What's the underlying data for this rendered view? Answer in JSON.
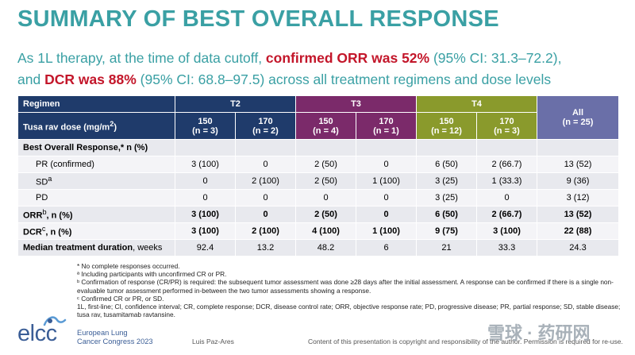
{
  "title": "SUMMARY OF BEST OVERALL RESPONSE",
  "subtitle": {
    "l1a": "As 1L therapy, at the time of data cutoff, ",
    "l1b": "confirmed ORR was 52%",
    "l1c": " (95% CI: 31.3–72.2),",
    "l2a": "and ",
    "l2b": "DCR was 88%",
    "l2c": " (95% CI:  68.8–97.5) across all treatment regimens and dose levels"
  },
  "table": {
    "regimen_label": "Regimen",
    "dose_label": "Tusa rav dose (mg/m",
    "dose_sup": "2",
    "dose_close": ")",
    "groups": [
      "T2",
      "T3",
      "T4"
    ],
    "cols": [
      {
        "dose": "150",
        "n": "(n = 3)"
      },
      {
        "dose": "170",
        "n": "(n = 2)"
      },
      {
        "dose": "150",
        "n": "(n = 4)"
      },
      {
        "dose": "170",
        "n": "(n = 1)"
      },
      {
        "dose": "150",
        "n": "(n = 12)"
      },
      {
        "dose": "170",
        "n": "(n = 3)"
      },
      {
        "dose": "All",
        "n": "(n = 25)"
      }
    ],
    "section": "Best Overall Response,* n (%)",
    "rows": {
      "pr": {
        "label": "PR (confirmed)",
        "values": [
          "3 (100)",
          "0",
          "2 (50)",
          "0",
          "6 (50)",
          "2 (66.7)",
          "13 (52)"
        ]
      },
      "sd": {
        "label": "SD",
        "sup": "a",
        "values": [
          "0",
          "2 (100)",
          "2 (50)",
          "1 (100)",
          "3 (25)",
          "1 (33.3)",
          "9 (36)"
        ]
      },
      "pd": {
        "label": "PD",
        "values": [
          "0",
          "0",
          "0",
          "0",
          "3 (25)",
          "0",
          "3 (12)"
        ]
      },
      "orr": {
        "label": "ORR",
        "sup": "b",
        "rest": ", n (%)",
        "values": [
          "3 (100)",
          "0",
          "2 (50)",
          "0",
          "6 (50)",
          "2 (66.7)",
          "13 (52)"
        ]
      },
      "dcr": {
        "label": "DCR",
        "sup": "c",
        "rest": ", n (%)",
        "values": [
          "3 (100)",
          "2 (100)",
          "4 (100)",
          "1 (100)",
          "9 (75)",
          "3 (100)",
          "22 (88)"
        ]
      },
      "mtd": {
        "label": "Median treatment duration",
        "rest": ", weeks",
        "values": [
          "92.4",
          "13.2",
          "48.2",
          "6",
          "21",
          "33.3",
          "24.3"
        ]
      }
    }
  },
  "footnotes": [
    "* No complete responses occurred.",
    "ª Including participants with unconfirmed CR or PR.",
    "ᵇ Confirmation of response (CR/PR) is required: the subsequent tumor assessment was done ≥28 days after the initial assessment. A response can be confirmed if there is a single non-evaluable tumor assessment performed in-between the two tumor assessments showing a response.",
    "ᶜ Confirmed CR or PR, or SD.",
    "1L, first-line; CI, confidence interval; CR, complete response; DCR, disease control rate; ORR, objective response rate; PD, progressive disease; PR, partial response; SD, stable disease; tusa rav, tusamitamab ravtansine."
  ],
  "footer": {
    "logo": "elcc",
    "conf_line1": "European Lung",
    "conf_line2": "Cancer Congress 2023",
    "presenter": "Luis Paz-Ares",
    "copyright": "Content of this presentation is copyright and responsibility of the author. Permission is required for re-use.",
    "watermark": "雪球 · 药研网"
  },
  "colors": {
    "title": "#3aa0a4",
    "highlight": "#c3162a",
    "header_main": "#1f3b6b",
    "t3": "#7b2a6a",
    "t4": "#8a9a2c",
    "all": "#6a6fa8"
  }
}
